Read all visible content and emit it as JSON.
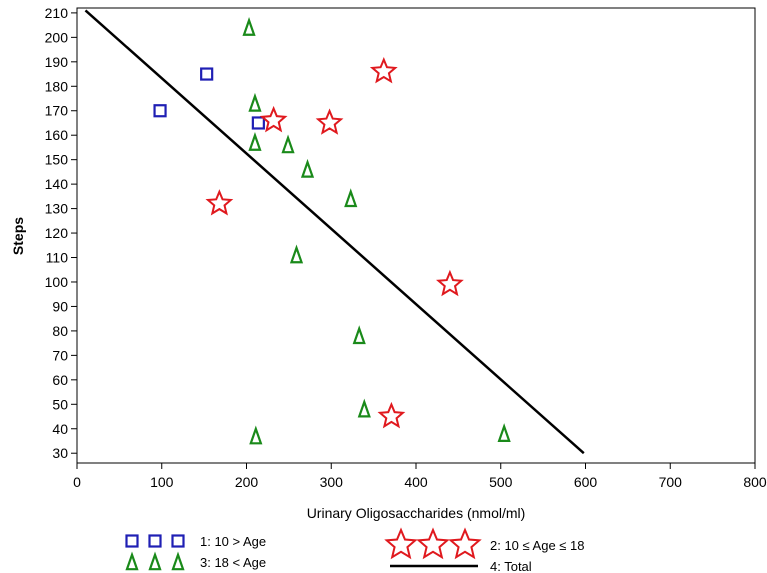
{
  "chart_data": {
    "type": "scatter",
    "xlabel": "Urinary Oligosaccharides (nmol/ml)",
    "ylabel": "Steps",
    "xlim": [
      0,
      800
    ],
    "ylim": [
      26,
      212
    ],
    "xticks": [
      0,
      100,
      200,
      300,
      400,
      500,
      600,
      700,
      800
    ],
    "yticks": [
      30,
      40,
      50,
      60,
      70,
      80,
      90,
      100,
      110,
      120,
      130,
      140,
      150,
      160,
      170,
      180,
      190,
      200,
      210
    ],
    "grid": false,
    "legend_position": "bottom",
    "series": [
      {
        "name": "1: 10 > Age",
        "marker": "square",
        "color": "#1f1fb4",
        "points": [
          [
            98,
            170
          ],
          [
            153,
            185
          ],
          [
            214,
            165
          ]
        ]
      },
      {
        "name": "2: 10 ≤ Age ≤ 18",
        "marker": "star",
        "color": "#e0191e",
        "points": [
          [
            168,
            132
          ],
          [
            232,
            166
          ],
          [
            298,
            165
          ],
          [
            362,
            186
          ],
          [
            440,
            99
          ],
          [
            371,
            45
          ]
        ]
      },
      {
        "name": "3: 18 < Age",
        "marker": "triangle",
        "color": "#1a8a1a",
        "points": [
          [
            203,
            204
          ],
          [
            210,
            173
          ],
          [
            210,
            157
          ],
          [
            249,
            156
          ],
          [
            272,
            146
          ],
          [
            323,
            134
          ],
          [
            259,
            111
          ],
          [
            333,
            78
          ],
          [
            339,
            48
          ],
          [
            211,
            37
          ],
          [
            504,
            38
          ]
        ]
      },
      {
        "name": "4: Total",
        "marker": "line",
        "color": "#000000",
        "points": [
          [
            10,
            211
          ],
          [
            598,
            30
          ]
        ]
      }
    ]
  }
}
